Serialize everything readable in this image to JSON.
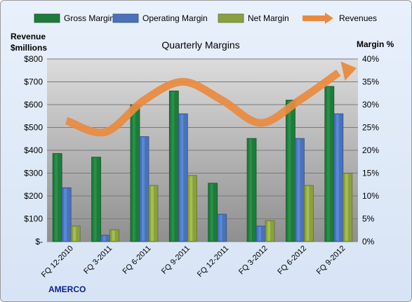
{
  "chart_data": {
    "type": "bar",
    "title": "Quarterly Margins",
    "company": "AMERCO",
    "left_axis_label_line1": "Revenue",
    "left_axis_label_line2": "$millions",
    "right_axis_label": "Margin %",
    "categories": [
      "FQ 12-2010",
      "FQ 3-2011",
      "FQ 6-2011",
      "FQ 9-2011",
      "FQ 12-2011",
      "FQ 3-2012",
      "FQ 6-2012",
      "FQ 9-2012"
    ],
    "left_ticks": [
      "$-",
      "$100",
      "$200",
      "$300",
      "$400",
      "$500",
      "$600",
      "$700",
      "$800"
    ],
    "right_ticks": [
      "0%",
      "5%",
      "10%",
      "15%",
      "20%",
      "25%",
      "30%",
      "35%",
      "40%"
    ],
    "left_ylim": [
      0,
      800
    ],
    "right_ylim": [
      0,
      40
    ],
    "series": [
      {
        "name": "Gross Margin",
        "axis": "right",
        "color": "#1f7a3c",
        "values": [
          19.3,
          18.5,
          30.0,
          33.0,
          12.8,
          22.6,
          31.0,
          34.0
        ]
      },
      {
        "name": "Operating Margin",
        "axis": "right",
        "color": "#4a72b8",
        "values": [
          11.8,
          1.4,
          23.0,
          28.0,
          6.0,
          3.4,
          22.6,
          28.0
        ]
      },
      {
        "name": "Net Margin",
        "axis": "right",
        "color": "#8aa040",
        "values": [
          3.4,
          2.6,
          12.3,
          14.5,
          null,
          4.6,
          12.3,
          15.0
        ]
      },
      {
        "name": "Revenues",
        "axis": "left",
        "color": "#ea8a3e",
        "type": "line",
        "values": [
          530,
          480,
          620,
          700,
          620,
          520,
          620,
          740
        ]
      }
    ],
    "legend_position": "top",
    "grid": true
  }
}
